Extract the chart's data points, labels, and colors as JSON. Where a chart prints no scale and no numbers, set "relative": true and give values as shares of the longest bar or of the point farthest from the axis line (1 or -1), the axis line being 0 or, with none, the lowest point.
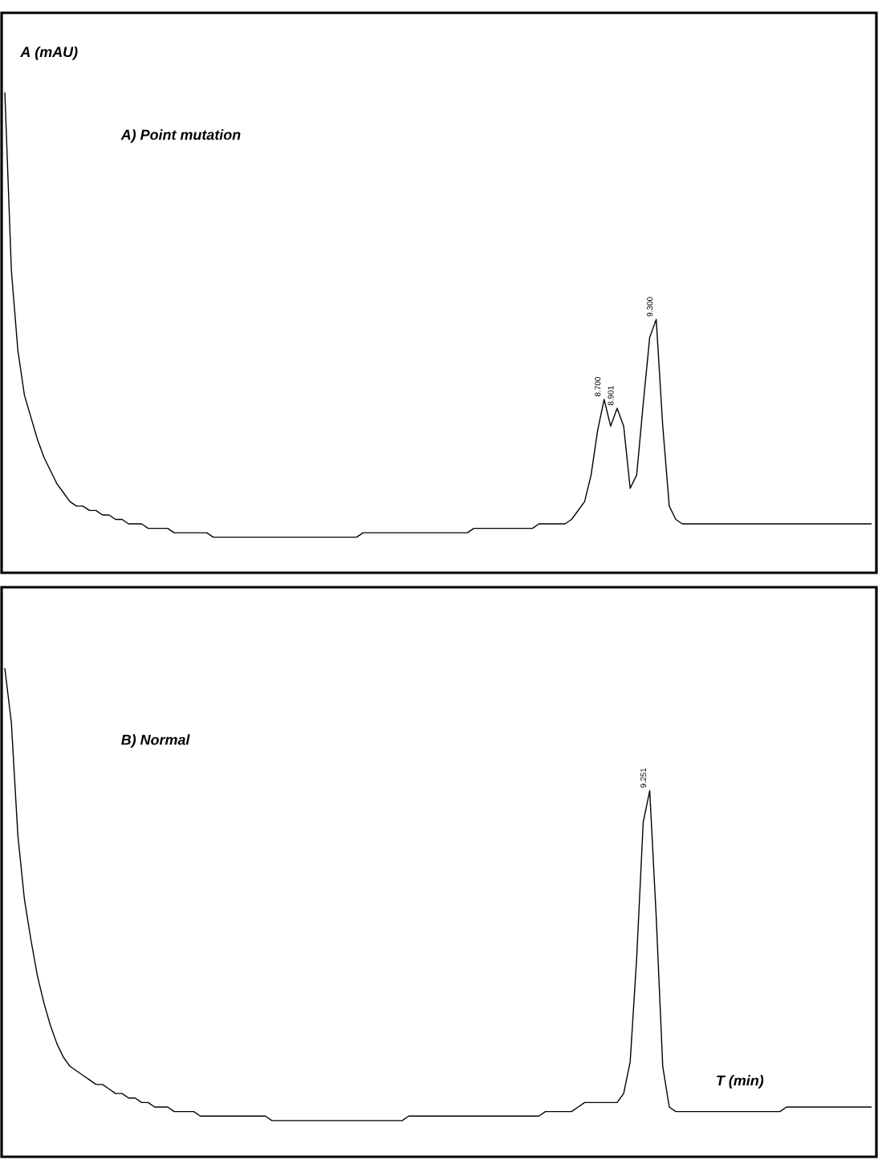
{
  "chart_data": [
    {
      "type": "line",
      "title": "A)  Point mutation",
      "ylabel": "A (mAU)",
      "relative": true,
      "tick_labels": false,
      "categories": [
        null,
        null,
        null,
        null,
        null,
        null,
        null,
        null,
        null,
        null,
        null,
        null,
        null,
        null,
        null,
        null,
        null,
        null,
        null,
        null,
        null,
        null,
        null,
        null,
        null,
        null,
        null,
        null,
        null,
        null,
        null,
        null,
        null,
        null,
        null,
        null,
        null,
        null,
        null,
        null,
        null,
        null,
        null,
        null,
        null,
        null,
        null,
        null,
        null,
        null,
        null,
        null,
        null,
        null,
        null,
        null,
        null,
        null,
        null,
        null,
        null,
        null,
        null,
        null,
        null,
        null,
        null,
        null,
        null,
        null,
        null,
        null,
        null,
        null,
        null,
        null,
        null,
        null,
        null,
        null,
        null,
        null,
        null,
        null,
        null,
        null,
        null,
        null,
        null,
        null,
        null,
        null,
        null,
        null,
        null,
        null,
        null,
        null,
        null,
        null,
        null,
        null,
        null,
        null,
        null,
        null,
        null,
        null,
        null,
        null,
        null,
        null,
        null,
        null,
        null,
        null,
        null,
        null,
        null,
        null,
        null,
        null,
        null,
        null,
        null,
        null,
        null,
        null,
        null,
        null,
        null,
        null,
        null,
        null
      ],
      "series": [
        {
          "color": "#000000",
          "values": [
            1.0,
            0.6,
            0.42,
            0.32,
            0.27,
            0.22,
            0.18,
            0.15,
            0.12,
            0.1,
            0.08,
            0.07,
            0.07,
            0.06,
            0.06,
            0.05,
            0.05,
            0.04,
            0.04,
            0.03,
            0.03,
            0.03,
            0.02,
            0.02,
            0.02,
            0.02,
            0.01,
            0.01,
            0.01,
            0.01,
            0.01,
            0.01,
            0,
            0,
            0,
            0,
            0,
            0,
            0,
            0,
            0,
            0,
            0,
            0,
            0,
            0,
            0,
            0,
            0,
            0,
            0,
            0,
            0,
            0,
            0,
            0.01,
            0.01,
            0.01,
            0.01,
            0.01,
            0.01,
            0.01,
            0.01,
            0.01,
            0.01,
            0.01,
            0.01,
            0.01,
            0.01,
            0.01,
            0.01,
            0.01,
            0.02,
            0.02,
            0.02,
            0.02,
            0.02,
            0.02,
            0.02,
            0.02,
            0.02,
            0.02,
            0.03,
            0.03,
            0.03,
            0.03,
            0.03,
            0.04,
            0.06,
            0.08,
            0.14,
            0.24,
            0.31,
            0.25,
            0.29,
            0.25,
            0.11,
            0.14,
            0.3,
            0.45,
            0.49,
            0.25,
            0.07,
            0.04,
            0.03,
            0.03,
            0.03,
            0.03,
            0.03,
            0.03,
            0.03,
            0.03,
            0.03,
            0.03,
            0.03,
            0.03,
            0.03,
            0.03,
            0.03,
            0.03,
            0.03,
            0.03,
            0.03,
            0.03,
            0.03,
            0.03,
            0.03,
            0.03,
            0.03,
            0.03,
            0.03,
            0.03,
            0.03,
            0.03
          ]
        }
      ],
      "annotations": [
        "8.700",
        "8.901",
        "9.300"
      ]
    },
    {
      "type": "line",
      "title": "B)  Normal",
      "xlabel": "T (min)",
      "relative": true,
      "tick_labels": false,
      "categories": [
        null,
        null,
        null,
        null,
        null,
        null,
        null,
        null,
        null,
        null,
        null,
        null,
        null,
        null,
        null,
        null,
        null,
        null,
        null,
        null,
        null,
        null,
        null,
        null,
        null,
        null,
        null,
        null,
        null,
        null,
        null,
        null,
        null,
        null,
        null,
        null,
        null,
        null,
        null,
        null,
        null,
        null,
        null,
        null,
        null,
        null,
        null,
        null,
        null,
        null,
        null,
        null,
        null,
        null,
        null,
        null,
        null,
        null,
        null,
        null,
        null,
        null,
        null,
        null,
        null,
        null,
        null,
        null,
        null,
        null,
        null,
        null,
        null,
        null,
        null,
        null,
        null,
        null,
        null,
        null,
        null,
        null,
        null,
        null,
        null,
        null,
        null,
        null,
        null,
        null,
        null,
        null,
        null,
        null,
        null,
        null,
        null,
        null,
        null,
        null,
        null,
        null,
        null,
        null,
        null,
        null,
        null,
        null,
        null,
        null,
        null,
        null,
        null,
        null,
        null,
        null,
        null,
        null,
        null,
        null,
        null,
        null,
        null,
        null,
        null,
        null,
        null,
        null,
        null,
        null,
        null,
        null,
        null,
        null
      ],
      "series": [
        {
          "color": "#000000",
          "values": [
            1.0,
            0.88,
            0.63,
            0.49,
            0.4,
            0.32,
            0.26,
            0.21,
            0.17,
            0.14,
            0.12,
            0.11,
            0.1,
            0.09,
            0.08,
            0.08,
            0.07,
            0.06,
            0.06,
            0.05,
            0.05,
            0.04,
            0.04,
            0.03,
            0.03,
            0.03,
            0.02,
            0.02,
            0.02,
            0.02,
            0.01,
            0.01,
            0.01,
            0.01,
            0.01,
            0.01,
            0.01,
            0.01,
            0.01,
            0.01,
            0.01,
            0,
            0,
            0,
            0,
            0,
            0,
            0,
            0,
            0,
            0,
            0,
            0,
            0,
            0,
            0,
            0,
            0,
            0,
            0,
            0,
            0,
            0.01,
            0.01,
            0.01,
            0.01,
            0.01,
            0.01,
            0.01,
            0.01,
            0.01,
            0.01,
            0.01,
            0.01,
            0.01,
            0.01,
            0.01,
            0.01,
            0.01,
            0.01,
            0.01,
            0.01,
            0.01,
            0.02,
            0.02,
            0.02,
            0.02,
            0.02,
            0.03,
            0.04,
            0.04,
            0.04,
            0.04,
            0.04,
            0.04,
            0.06,
            0.13,
            0.36,
            0.66,
            0.73,
            0.45,
            0.12,
            0.03,
            0.02,
            0.02,
            0.02,
            0.02,
            0.02,
            0.02,
            0.02,
            0.02,
            0.02,
            0.02,
            0.02,
            0.02,
            0.02,
            0.02,
            0.02,
            0.02,
            0.02,
            0.03,
            0.03,
            0.03,
            0.03,
            0.03,
            0.03,
            0.03,
            0.03,
            0.03,
            0.03,
            0.03,
            0.03,
            0.03,
            0.03
          ]
        }
      ],
      "annotations": [
        "9.251"
      ]
    }
  ]
}
